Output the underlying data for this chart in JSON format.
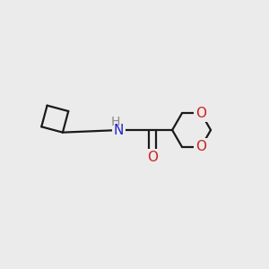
{
  "background_color": "#ebebeb",
  "bond_color": "#1a1a1a",
  "bond_width": 1.6,
  "N_color": "#2222cc",
  "O_color": "#cc2222",
  "font_size_atom": 11,
  "figsize": [
    3.0,
    3.0
  ],
  "dpi": 100,
  "xlim": [
    -4.0,
    3.2
  ],
  "ylim": [
    -1.6,
    1.8
  ]
}
